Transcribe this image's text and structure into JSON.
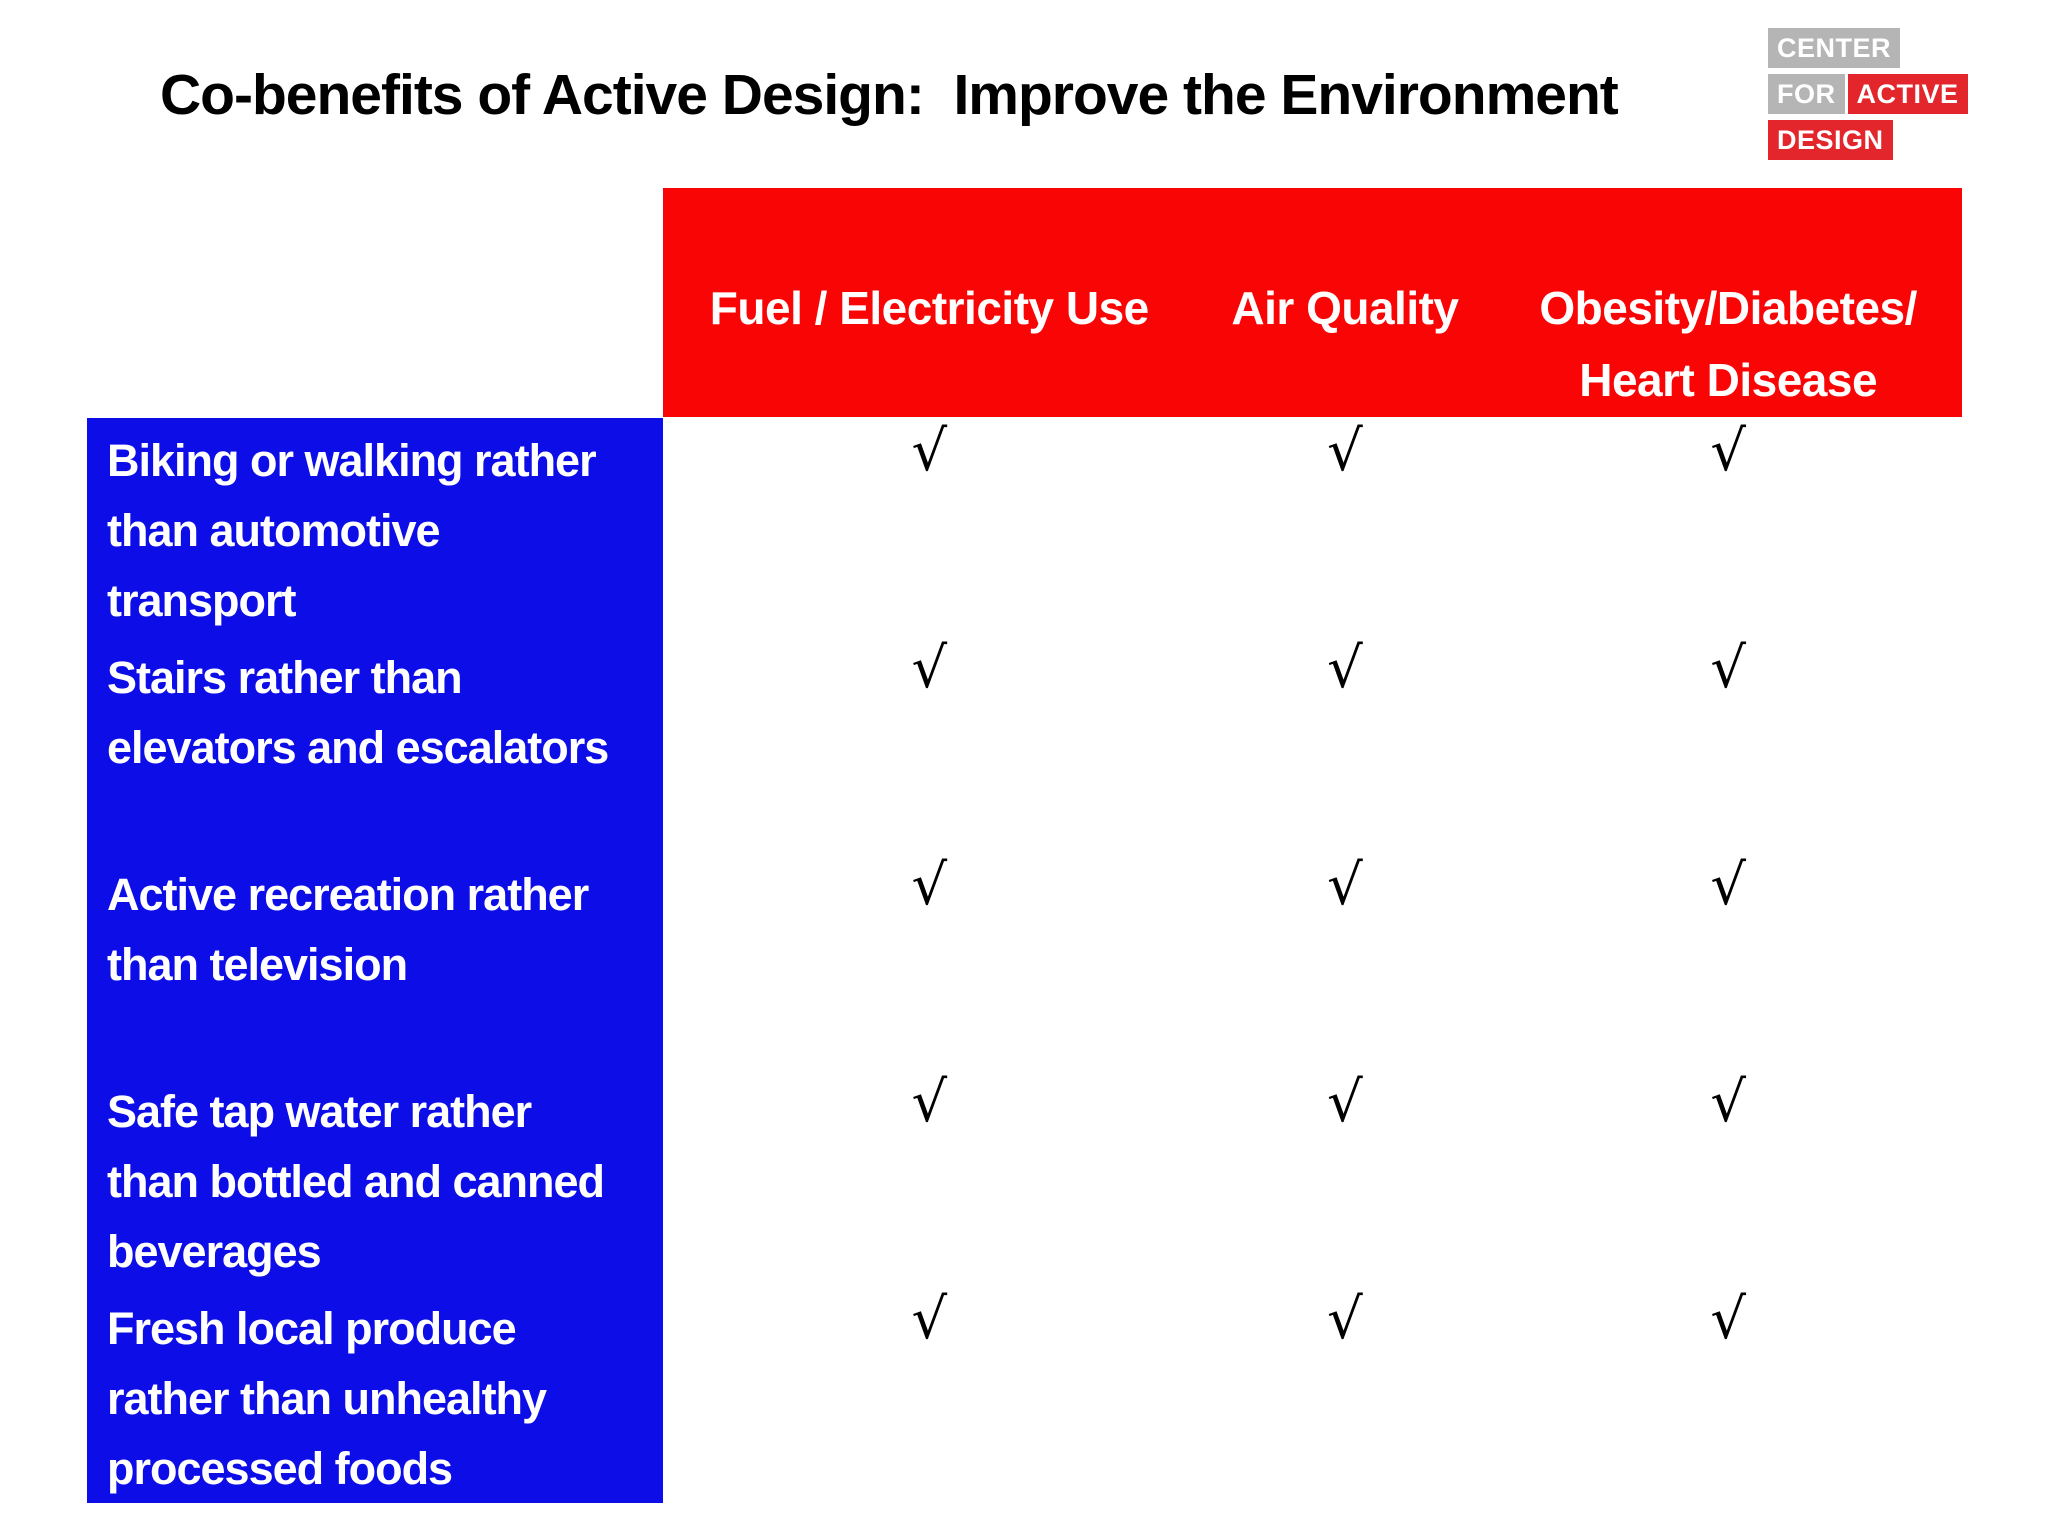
{
  "title": "Co-benefits of Active Design:  Improve the Environment",
  "logo": {
    "center": "CENTER",
    "for": "FOR",
    "active": "ACTIVE",
    "design": "DESIGN"
  },
  "colors": {
    "header_red": "#fa0505",
    "panel_blue": "#0d0de8",
    "logo_red": "#e2262b",
    "logo_gray": "#b5b5b5",
    "checkmark_black": "#000000"
  },
  "table": {
    "columns": [
      "Fuel / Electricity Use",
      "Air Quality",
      "Obesity/Diabetes/\nHeart Disease"
    ],
    "check_symbol": "√",
    "rows": [
      {
        "label": "Biking or walking rather than automotive transport",
        "checks": [
          "√",
          "√",
          "√"
        ]
      },
      {
        "label": "Stairs rather than elevators and escalators",
        "checks": [
          "√",
          "√",
          "√"
        ]
      },
      {
        "label": "Active recreation rather than television",
        "checks": [
          "√",
          "√",
          "√"
        ]
      },
      {
        "label": "Safe tap water rather than bottled and canned beverages",
        "checks": [
          "√",
          "√",
          "√"
        ]
      },
      {
        "label": "Fresh local produce rather than unhealthy processed foods",
        "checks": [
          "√",
          "√",
          "√"
        ]
      }
    ]
  }
}
